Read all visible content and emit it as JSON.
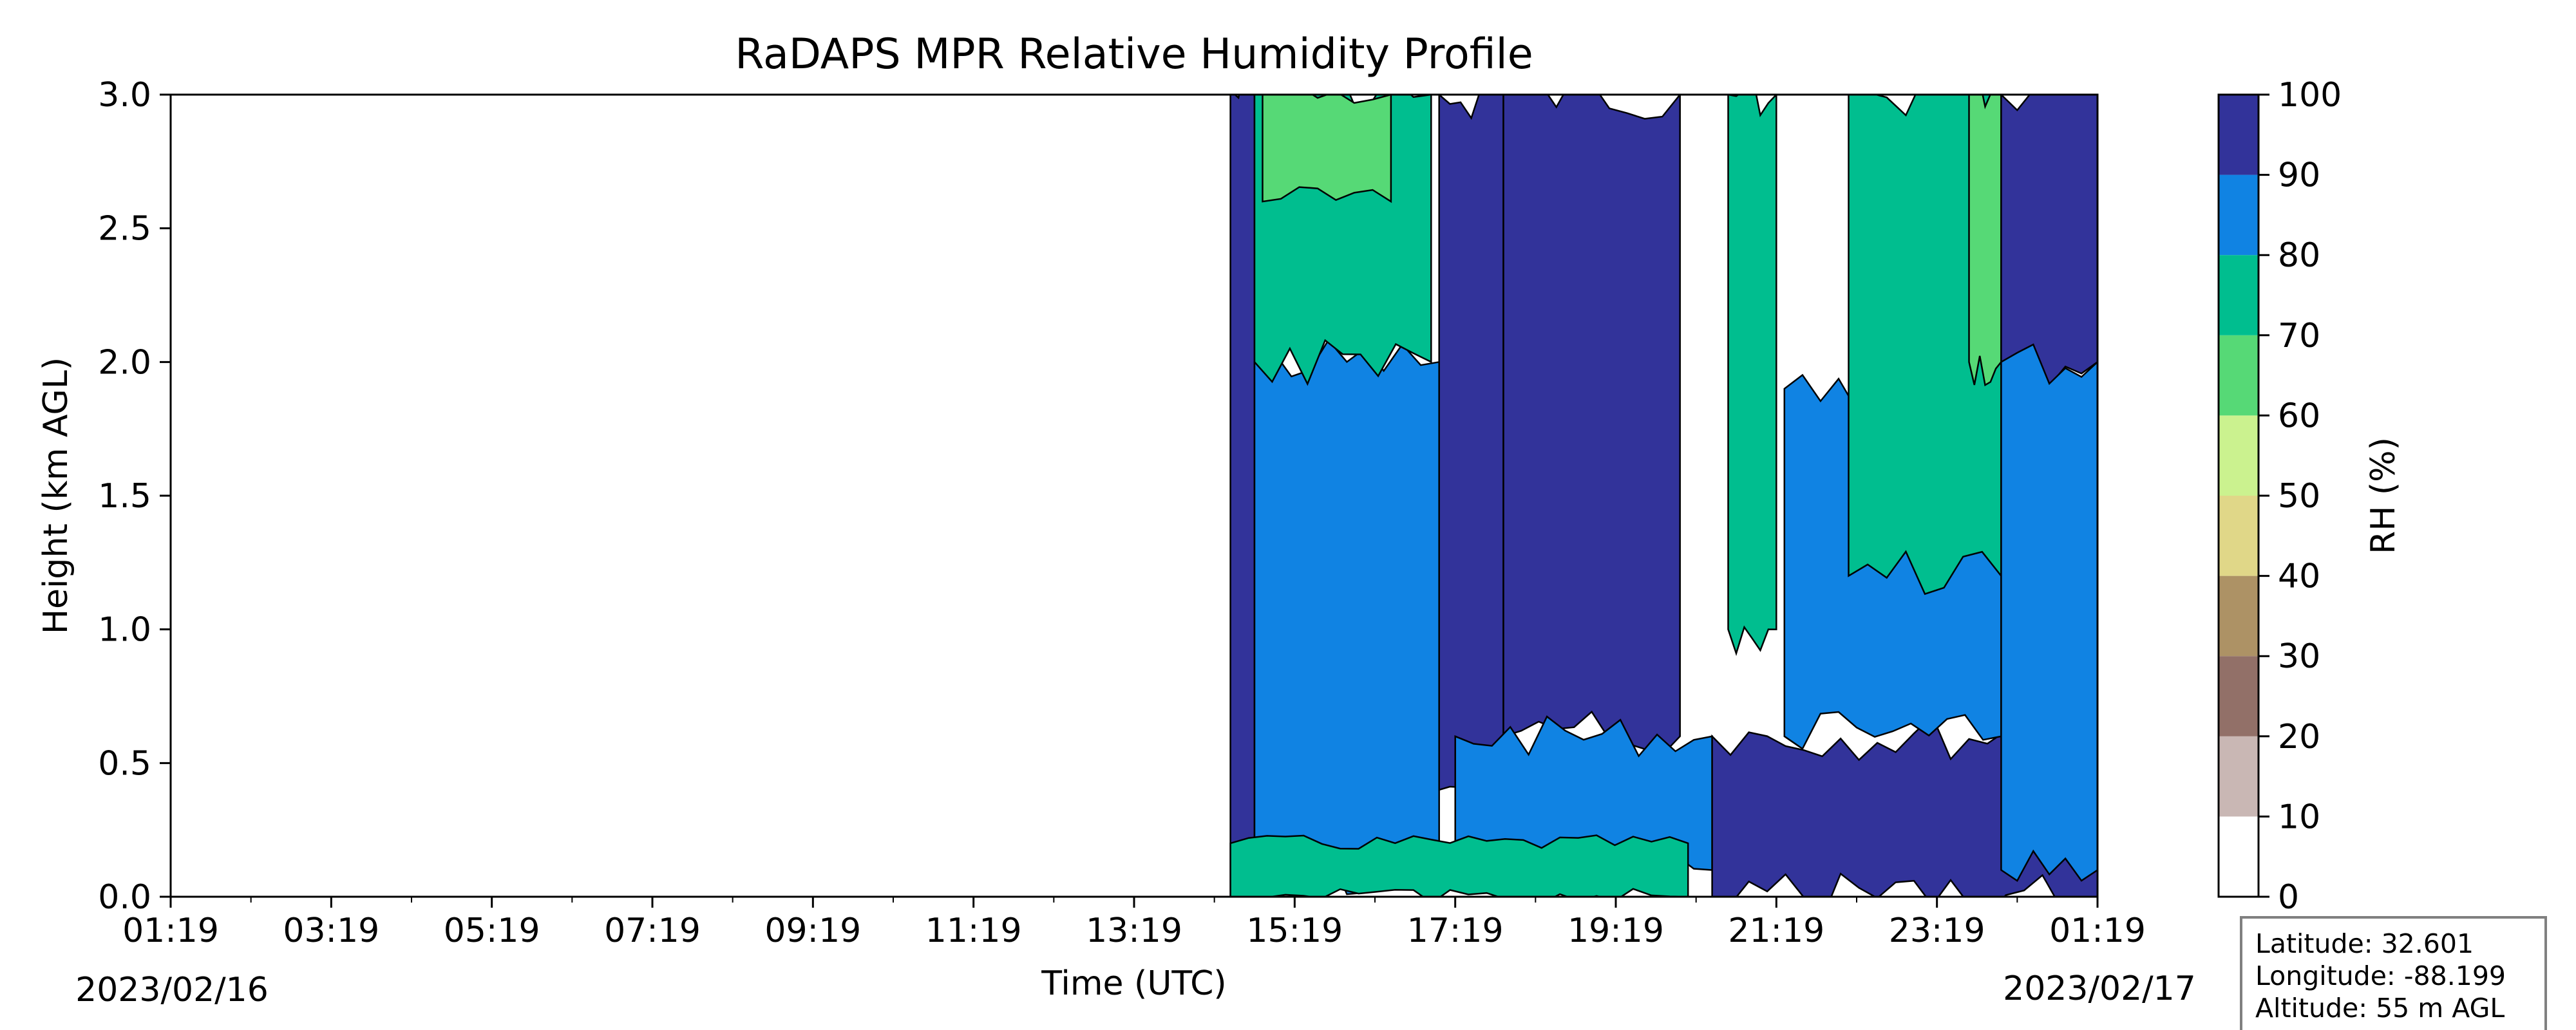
{
  "chart_data": {
    "type": "heatmap",
    "subtype": "filled-contour",
    "title": "RaDAPS MPR Relative Humidity Profile",
    "xlabel": "Time (UTC)",
    "ylabel": "Height (km AGL)",
    "x_ticks": [
      "01:19",
      "03:19",
      "05:19",
      "07:19",
      "09:19",
      "11:19",
      "13:19",
      "15:19",
      "17:19",
      "19:19",
      "21:19",
      "23:19",
      "01:19"
    ],
    "x_tick_hours": [
      0,
      2,
      4,
      6,
      8,
      10,
      12,
      14,
      16,
      18,
      20,
      22,
      24
    ],
    "xlim_hours": [
      0,
      24
    ],
    "start_date": "2023/02/16",
    "end_date": "2023/02/17",
    "y_ticks": [
      "0.0",
      "0.5",
      "1.0",
      "1.5",
      "2.0",
      "2.5",
      "3.0"
    ],
    "ylim": [
      0,
      3.0
    ],
    "grid": false,
    "data_start_hour": 13.2,
    "colorbar": {
      "label": "RH (%)",
      "ticks": [
        "0",
        "10",
        "20",
        "30",
        "40",
        "50",
        "60",
        "70",
        "80",
        "90",
        "100"
      ],
      "levels": [
        {
          "min": 0,
          "max": 10,
          "color": "#ffffff"
        },
        {
          "min": 10,
          "max": 20,
          "color": "#c9b7b4"
        },
        {
          "min": 20,
          "max": 30,
          "color": "#927068"
        },
        {
          "min": 30,
          "max": 40,
          "color": "#ad9265"
        },
        {
          "min": 40,
          "max": 50,
          "color": "#e0d788"
        },
        {
          "min": 50,
          "max": 60,
          "color": "#cbf28f"
        },
        {
          "min": 60,
          "max": 70,
          "color": "#56d976"
        },
        {
          "min": 70,
          "max": 80,
          "color": "#00be8f"
        },
        {
          "min": 80,
          "max": 90,
          "color": "#1083e3"
        },
        {
          "min": 90,
          "max": 100,
          "color": "#32339a"
        }
      ]
    },
    "regions": [
      {
        "rh_band": "90-100",
        "hours": [
          13.2,
          13.5
        ],
        "height_km": [
          0.0,
          3.0
        ]
      },
      {
        "rh_band": "80-90",
        "hours": [
          13.5,
          15.8
        ],
        "height_km": [
          0.1,
          2.0
        ]
      },
      {
        "rh_band": "70-80",
        "hours": [
          13.5,
          15.7
        ],
        "height_km": [
          2.0,
          3.0
        ]
      },
      {
        "rh_band": "60-70",
        "hours": [
          13.6,
          15.2
        ],
        "height_km": [
          2.6,
          3.0
        ]
      },
      {
        "rh_band": "90-100",
        "hours": [
          15.8,
          16.6
        ],
        "height_km": [
          0.4,
          3.0
        ]
      },
      {
        "rh_band": "90-100",
        "hours": [
          16.6,
          18.8
        ],
        "height_km": [
          0.6,
          3.0
        ]
      },
      {
        "rh_band": "80-90",
        "hours": [
          16.0,
          19.2
        ],
        "height_km": [
          0.1,
          0.6
        ]
      },
      {
        "rh_band": "70-80",
        "hours": [
          13.2,
          18.9
        ],
        "height_km": [
          0.0,
          0.2
        ]
      },
      {
        "rh_band": "70-80",
        "hours": [
          19.4,
          20.0
        ],
        "height_km": [
          1.0,
          3.0
        ]
      },
      {
        "rh_band": "90-100",
        "hours": [
          19.2,
          24.0
        ],
        "height_km": [
          0.0,
          0.6
        ]
      },
      {
        "rh_band": "80-90",
        "hours": [
          20.1,
          22.8
        ],
        "height_km": [
          0.6,
          1.9
        ]
      },
      {
        "rh_band": "70-80",
        "hours": [
          20.9,
          22.8
        ],
        "height_km": [
          1.2,
          3.0
        ]
      },
      {
        "rh_band": "60-70",
        "hours": [
          22.4,
          22.8
        ],
        "height_km": [
          2.0,
          3.0
        ]
      },
      {
        "rh_band": "90-100",
        "hours": [
          22.8,
          24.0
        ],
        "height_km": [
          2.0,
          3.0
        ]
      },
      {
        "rh_band": "80-90",
        "hours": [
          22.8,
          24.0
        ],
        "height_km": [
          0.1,
          2.0
        ]
      }
    ]
  },
  "info_box": {
    "latitude": "Latitude: 32.601",
    "longitude": "Longitude: -88.199",
    "altitude": "Altitude: 55 m AGL"
  },
  "colors": {
    "frame": "#000000",
    "contour_line": "#000000",
    "info_border": "#808080"
  }
}
